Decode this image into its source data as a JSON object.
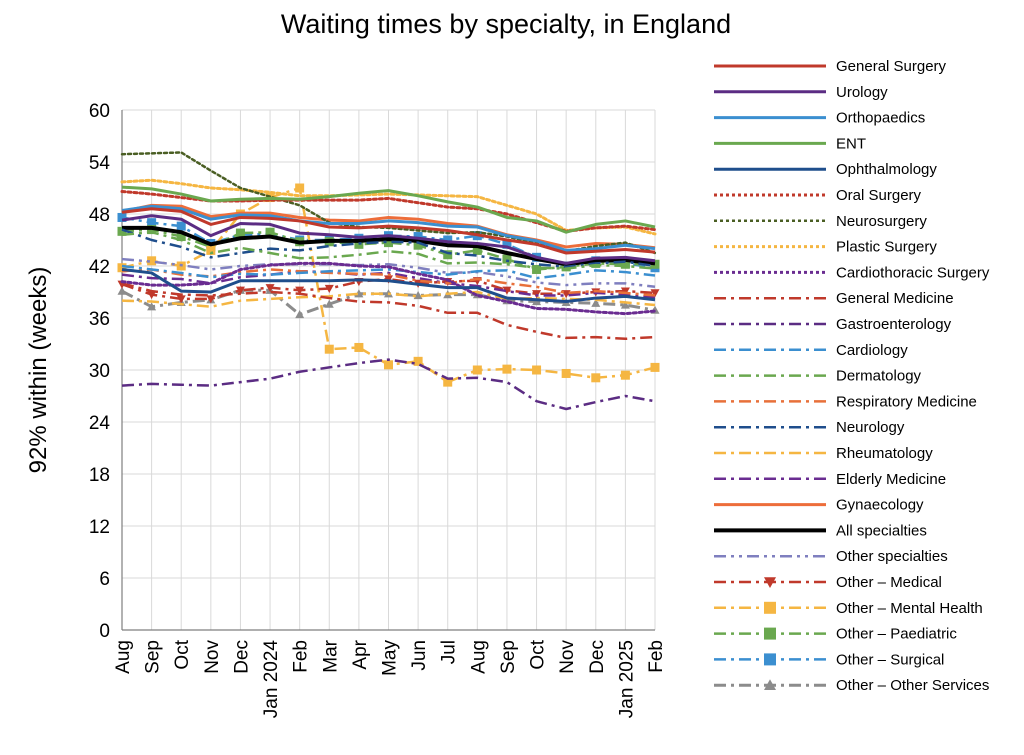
{
  "chart_data": {
    "type": "line",
    "title": "Waiting times by specialty, in England",
    "ylabel": "92% within  (weeks)",
    "xlabel": "",
    "ylim": [
      0,
      60
    ],
    "yticks": [
      0,
      6,
      12,
      18,
      24,
      30,
      36,
      42,
      48,
      54,
      60
    ],
    "grid": true,
    "legend_position": "right",
    "x": [
      "Aug",
      "Sep",
      "Oct",
      "Nov",
      "Dec",
      "Jan",
      "Feb",
      "Mar",
      "Apr",
      "May",
      "Jun",
      "Jul",
      "Aug",
      "Sep",
      "Oct",
      "Nov",
      "Dec",
      "Jan",
      "Feb"
    ],
    "xtick_labels": [
      "Aug",
      "Sep",
      "Oct",
      "Nov",
      "Dec",
      "Jan 2024",
      "Feb",
      "Mar",
      "Apr",
      "May",
      "Jun",
      "Jul",
      "Aug",
      "Sep",
      "Oct",
      "Nov",
      "Dec",
      "Jan 2025",
      "Feb"
    ],
    "series": [
      {
        "name": "General Surgery",
        "color": "#c0392b",
        "dash": "solid",
        "width": 3,
        "values": [
          48.2,
          48.6,
          48.3,
          46.8,
          47.6,
          47.5,
          47.2,
          46.5,
          46.4,
          46.6,
          46.4,
          46.1,
          45.6,
          45.0,
          44.5,
          43.5,
          43.7,
          43.9,
          43.6
        ]
      },
      {
        "name": "Urology",
        "color": "#5b2c83",
        "dash": "solid",
        "width": 3,
        "values": [
          47.3,
          47.8,
          47.4,
          45.5,
          46.9,
          46.8,
          45.8,
          45.6,
          45.3,
          45.5,
          45.2,
          44.8,
          44.6,
          44.2,
          43.0,
          42.3,
          42.9,
          43.0,
          42.6
        ]
      },
      {
        "name": "Orthopaedics",
        "color": "#3b8fd0",
        "dash": "solid",
        "width": 3,
        "values": [
          48.4,
          48.9,
          48.6,
          47.4,
          47.9,
          47.8,
          47.2,
          46.9,
          46.9,
          47.2,
          47.0,
          46.6,
          46.5,
          45.5,
          44.9,
          43.8,
          44.0,
          44.4,
          44.0
        ]
      },
      {
        "name": "ENT",
        "color": "#6aa84f",
        "dash": "solid",
        "width": 3,
        "values": [
          51.1,
          50.9,
          50.3,
          49.5,
          49.7,
          49.8,
          49.7,
          50.0,
          50.4,
          50.7,
          50.1,
          49.4,
          48.8,
          47.6,
          47.2,
          45.9,
          46.8,
          47.2,
          46.5
        ]
      },
      {
        "name": "Ophthalmology",
        "color": "#1f4e8c",
        "dash": "solid",
        "width": 3,
        "values": [
          41.6,
          41.2,
          39.1,
          39.0,
          40.3,
          40.3,
          40.3,
          40.3,
          40.4,
          40.3,
          39.9,
          39.5,
          39.5,
          38.3,
          38.1,
          37.9,
          38.3,
          38.5,
          38.1
        ]
      },
      {
        "name": "Oral Surgery",
        "color": "#c0392b",
        "dash": "dot",
        "width": 3,
        "values": [
          50.6,
          50.3,
          49.9,
          49.5,
          49.5,
          49.6,
          49.6,
          49.6,
          49.6,
          49.8,
          49.3,
          48.8,
          48.6,
          48.0,
          47.0,
          46.0,
          46.4,
          46.6,
          46.2
        ]
      },
      {
        "name": "Neurosurgery",
        "color": "#4a5e23",
        "dash": "dot",
        "width": 2.5,
        "values": [
          54.9,
          55.0,
          55.1,
          53.0,
          51.0,
          50.0,
          49.0,
          47.0,
          46.5,
          46.4,
          46.1,
          45.8,
          45.9,
          45.4,
          44.6,
          43.7,
          44.3,
          44.7,
          43.5
        ]
      },
      {
        "name": "Plastic Surgery",
        "color": "#f5b642",
        "dash": "dot",
        "width": 3,
        "values": [
          51.7,
          51.9,
          51.5,
          51.0,
          50.8,
          50.5,
          50.1,
          50.1,
          50.2,
          50.3,
          50.2,
          50.1,
          50.0,
          49.0,
          48.0,
          46.1,
          46.4,
          46.5,
          45.7
        ]
      },
      {
        "name": "Cardiothoracic Surgery",
        "color": "#6a2c91",
        "dash": "dot",
        "width": 3,
        "values": [
          40.2,
          39.8,
          39.8,
          40.0,
          41.6,
          42.1,
          42.3,
          42.3,
          42.0,
          41.9,
          41.1,
          40.4,
          38.6,
          37.9,
          37.1,
          37.0,
          36.7,
          36.5,
          36.8
        ]
      },
      {
        "name": "General Medicine",
        "color": "#c0392b",
        "dash": "dashdot",
        "width": 2.5,
        "values": [
          40.0,
          39.1,
          38.7,
          38.6,
          38.8,
          39.0,
          38.8,
          38.3,
          37.9,
          37.8,
          37.4,
          36.6,
          36.6,
          35.2,
          34.4,
          33.7,
          33.8,
          33.6,
          33.8
        ]
      },
      {
        "name": "Gastroenterology",
        "color": "#5b2c83",
        "dash": "dashdot",
        "width": 2.5,
        "values": [
          28.2,
          28.4,
          28.3,
          28.2,
          28.6,
          29.0,
          29.8,
          30.3,
          30.8,
          31.2,
          30.7,
          29.0,
          29.1,
          28.6,
          26.4,
          25.5,
          26.3,
          27.0,
          26.4
        ]
      },
      {
        "name": "Cardiology",
        "color": "#3b8fd0",
        "dash": "dashdot",
        "width": 2.5,
        "values": [
          42.0,
          41.6,
          41.2,
          40.7,
          41.1,
          41.0,
          41.2,
          41.4,
          41.5,
          41.6,
          41.3,
          41.0,
          41.4,
          41.5,
          40.6,
          41.0,
          41.5,
          41.3,
          40.9
        ]
      },
      {
        "name": "Dermatology",
        "color": "#6aa84f",
        "dash": "dashdot",
        "width": 2.5,
        "values": [
          45.6,
          45.9,
          45.0,
          43.5,
          44.1,
          43.5,
          42.9,
          43.0,
          43.3,
          43.7,
          43.4,
          42.3,
          42.4,
          42.2,
          41.8,
          41.7,
          42.1,
          42.0,
          41.7
        ]
      },
      {
        "name": "Respiratory Medicine",
        "color": "#e8703a",
        "dash": "dashdot",
        "width": 2.5,
        "values": [
          41.4,
          41.6,
          41.0,
          40.8,
          41.3,
          41.6,
          41.4,
          41.2,
          41.1,
          41.0,
          40.3,
          40.0,
          40.5,
          40.0,
          39.6,
          38.9,
          39.1,
          38.9,
          38.6
        ]
      },
      {
        "name": "Neurology",
        "color": "#1f4e8c",
        "dash": "dashdot",
        "width": 2.5,
        "values": [
          46.2,
          45.0,
          44.2,
          43.0,
          43.5,
          44.0,
          43.8,
          44.3,
          44.6,
          44.8,
          44.7,
          43.5,
          43.2,
          42.6,
          42.2,
          41.9,
          42.3,
          42.5,
          42.0
        ]
      },
      {
        "name": "Rheumatology",
        "color": "#f5b642",
        "dash": "dashdot",
        "width": 2.5,
        "values": [
          38.0,
          37.9,
          37.6,
          37.3,
          38.0,
          38.2,
          38.4,
          38.5,
          38.8,
          38.8,
          38.5,
          38.8,
          39.0,
          38.2,
          38.3,
          38.2,
          38.1,
          37.8,
          37.5
        ]
      },
      {
        "name": "Elderly Medicine",
        "color": "#6a2c91",
        "dash": "dashdot",
        "width": 2.5,
        "values": [
          41.0,
          40.6,
          40.5,
          40.0,
          40.7,
          41.0,
          41.4,
          41.3,
          41.0,
          41.2,
          40.6,
          40.0,
          39.7,
          39.1,
          38.6,
          38.6,
          38.9,
          38.7,
          38.4
        ]
      },
      {
        "name": "Gynaecology",
        "color": "#ed6d3a",
        "dash": "solid",
        "width": 3,
        "values": [
          48.3,
          49.0,
          48.9,
          47.7,
          48.1,
          48.1,
          47.6,
          47.3,
          47.2,
          47.6,
          47.4,
          46.9,
          46.6,
          45.6,
          45.0,
          44.2,
          44.6,
          44.5,
          44.1
        ]
      },
      {
        "name": "All specialties",
        "color": "#000000",
        "dash": "solid",
        "width": 4,
        "values": [
          46.4,
          46.4,
          45.9,
          44.5,
          45.2,
          45.4,
          44.7,
          44.9,
          44.9,
          45.1,
          44.9,
          44.4,
          44.3,
          43.5,
          42.8,
          42.2,
          42.6,
          42.7,
          42.3
        ]
      },
      {
        "name": "Other specialties",
        "color": "#7f7fbf",
        "dash": "dashdotdot",
        "width": 2.5,
        "values": [
          42.8,
          42.5,
          42.1,
          41.6,
          42.0,
          42.2,
          42.2,
          42.2,
          42.1,
          42.2,
          41.8,
          41.2,
          41.3,
          40.8,
          40.1,
          39.8,
          40.0,
          40.0,
          39.6
        ]
      },
      {
        "name": "Other – Medical",
        "color": "#c0392b",
        "dash": "dashdot",
        "width": 2.5,
        "marker": "triangle-down",
        "values": [
          39.9,
          38.7,
          38.2,
          38.2,
          39.2,
          39.5,
          39.2,
          39.4,
          40.2,
          40.5,
          40.0,
          40.2,
          40.3,
          39.2,
          38.8,
          38.8,
          39.0,
          39.1,
          38.9
        ]
      },
      {
        "name": "Other – Mental Health",
        "color": "#f5b642",
        "dash": "dashdot",
        "width": 2.5,
        "marker": "square",
        "values": [
          41.8,
          42.6,
          42.0,
          43.8,
          48.0,
          49.9,
          51.0,
          32.4,
          32.6,
          30.6,
          31.0,
          28.6,
          30.0,
          30.1,
          30.0,
          29.6,
          29.1,
          29.4,
          30.3
        ]
      },
      {
        "name": "Other – Paediatric",
        "color": "#6aa84f",
        "dash": "dashdot",
        "width": 2.5,
        "marker": "square",
        "values": [
          46.0,
          46.2,
          45.4,
          44.2,
          45.8,
          45.9,
          44.8,
          44.8,
          44.5,
          44.7,
          44.4,
          43.3,
          43.8,
          42.8,
          41.6,
          41.9,
          42.3,
          42.2,
          42.2
        ]
      },
      {
        "name": "Other – Surgical",
        "color": "#3b8fd0",
        "dash": "dashdot",
        "width": 2.5,
        "marker": "square",
        "values": [
          47.6,
          47.0,
          46.6,
          44.6,
          45.6,
          45.7,
          45.0,
          45.0,
          45.2,
          45.5,
          45.4,
          45.0,
          45.5,
          44.5,
          43.0,
          42.0,
          42.6,
          42.3,
          41.8
        ]
      },
      {
        "name": "Other – Other Services",
        "color": "#8c8c8c",
        "dash": "dashdot",
        "width": 3,
        "marker": "triangle-up",
        "values": [
          39.1,
          37.3,
          37.8,
          38.1,
          39.2,
          39.2,
          36.4,
          37.6,
          38.8,
          38.8,
          38.6,
          38.7,
          38.7,
          38.0,
          37.9,
          37.8,
          37.7,
          37.5,
          36.9
        ]
      }
    ]
  }
}
